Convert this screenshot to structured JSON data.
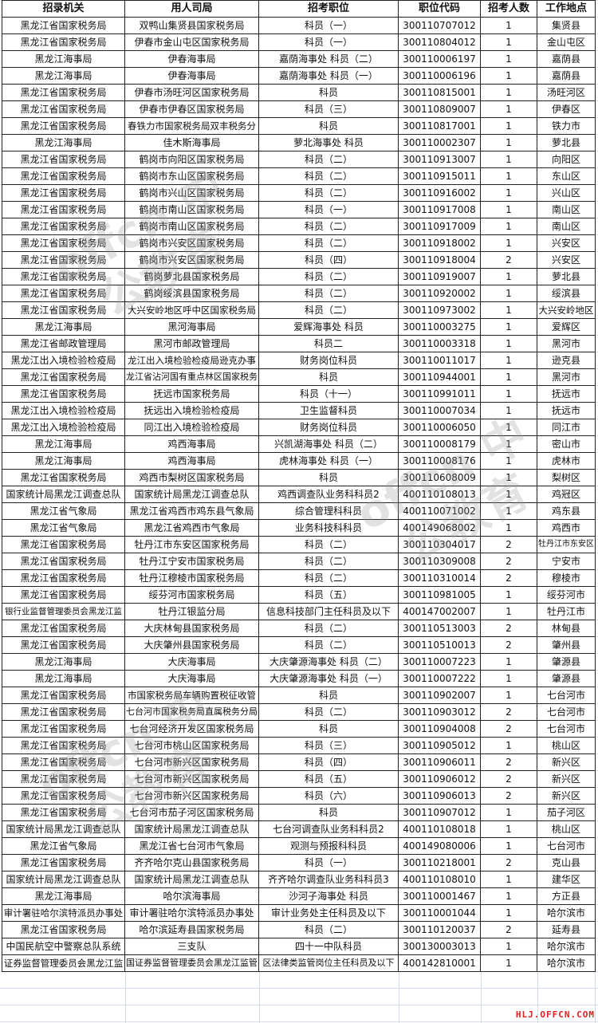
{
  "table": {
    "headers": [
      "招录机关",
      "用人司局",
      "招考职位",
      "职位代码",
      "招考人数",
      "工作地点"
    ],
    "rows": [
      [
        "黑龙江省国家税务局",
        "双鸭山集贤县国家税务局",
        "科员（一）",
        "300110707012",
        "1",
        "集贤县"
      ],
      [
        "黑龙江省国家税务局",
        "伊春市金山屯区国家税务局",
        "科员（一）",
        "300110804012",
        "1",
        "金山屯区"
      ],
      [
        "黑龙江海事局",
        "伊春海事局",
        "嘉荫海事处 科员（二）",
        "300110006197",
        "1",
        "嘉荫县"
      ],
      [
        "黑龙江海事局",
        "伊春海事局",
        "嘉荫海事处 科员（一）",
        "300110006196",
        "1",
        "嘉荫县"
      ],
      [
        "黑龙江省国家税务局",
        "伊春市汤旺河区国家税务局",
        "科员",
        "300110815001",
        "1",
        "汤旺河区"
      ],
      [
        "黑龙江省国家税务局",
        "伊春市伊春区国家税务局",
        "科员（三）",
        "300110809007",
        "1",
        "伊春区"
      ],
      [
        "黑龙江省国家税务局",
        "春铁力市国家税务局双丰税务分",
        "科员",
        "300110817001",
        "1",
        "铁力市"
      ],
      [
        "黑龙江海事局",
        "佳木斯海事局",
        "萝北海事处 科员",
        "300110002307",
        "1",
        "萝北县"
      ],
      [
        "黑龙江省国家税务局",
        "鹤岗市向阳区国家税务局",
        "科员（二）",
        "300110913007",
        "1",
        "向阳区"
      ],
      [
        "黑龙江省国家税务局",
        "鹤岗市东山区国家税务局",
        "科员（二）",
        "300110915011",
        "1",
        "东山区"
      ],
      [
        "黑龙江省国家税务局",
        "鹤岗市兴山区国家税务局",
        "科员（二）",
        "300110916002",
        "1",
        "兴山区"
      ],
      [
        "黑龙江省国家税务局",
        "鹤岗市南山区国家税务局",
        "科员（一）",
        "300110917008",
        "1",
        "南山区"
      ],
      [
        "黑龙江省国家税务局",
        "鹤岗市南山区国家税务局",
        "科员（二）",
        "300110917009",
        "1",
        "南山区"
      ],
      [
        "黑龙江省国家税务局",
        "鹤岗市兴安区国家税务局",
        "科员（二）",
        "300110918002",
        "1",
        "兴安区"
      ],
      [
        "黑龙江省国家税务局",
        "鹤岗市兴安区国家税务局",
        "科员（四）",
        "300110918004",
        "2",
        "兴安区"
      ],
      [
        "黑龙江省国家税务局",
        "鹤岗萝北县国家税务局",
        "科员（二）",
        "300110919007",
        "1",
        "萝北县"
      ],
      [
        "黑龙江省国家税务局",
        "鹤岗绥滨县国家税务局",
        "科员（二）",
        "300110920002",
        "1",
        "绥滨县"
      ],
      [
        "黑龙江省国家税务局",
        "大兴安岭地区呼中区国家税务局",
        "科员（二）",
        "300110973002",
        "1",
        "大兴安岭地区"
      ],
      [
        "黑龙江海事局",
        "黑河海事局",
        "爱辉海事处 科员",
        "300110003275",
        "1",
        "爱辉区"
      ],
      [
        "黑龙江省邮政管理局",
        "黑河市邮政管理局",
        "科员二",
        "300110003318",
        "1",
        "黑河市"
      ],
      [
        "黑龙江出入境检验检疫局",
        "龙江出入境检验检疫局逊克办事",
        "财务岗位科员",
        "300110011017",
        "1",
        "逊克县"
      ],
      [
        "黑龙江省国家税务局",
        "龙江省沾河国有重点林区国家税务",
        "科员",
        "300110944001",
        "1",
        "黑河市"
      ],
      [
        "黑龙江省国家税务局",
        "抚远市国家税务局",
        "科员（十一）",
        "300110991011",
        "1",
        "抚远市"
      ],
      [
        "黑龙江出入境检验检疫局",
        "抚远出入境检验检疫局",
        "卫生监督科员",
        "300110007034",
        "1",
        "抚远市"
      ],
      [
        "黑龙江出入境检验检疫局",
        "同江出入境检验检疫局",
        "财务岗位科员",
        "300110006050",
        "1",
        "同江市"
      ],
      [
        "黑龙江海事局",
        "鸡西海事局",
        "兴凯湖海事处 科员（二）",
        "300110008179",
        "1",
        "密山市"
      ],
      [
        "黑龙江海事局",
        "鸡西海事局",
        "虎林海事处 科员（一）",
        "300110008176",
        "1",
        "虎林市"
      ],
      [
        "黑龙江省国家税务局",
        "鸡西市梨树区国家税务局",
        "科员",
        "300110608009",
        "1",
        "梨树区"
      ],
      [
        "国家统计局黑龙江调查总队",
        "国家统计局黑龙江调查总队",
        "鸡西调查队业务科科员2",
        "400110108013",
        "1",
        "鸡冠区"
      ],
      [
        "黑龙江省气象局",
        "黑龙江省鸡西市鸡东县气象局",
        "综合管理科科员",
        "400110071002",
        "1",
        "鸡东县"
      ],
      [
        "黑龙江省气象局",
        "黑龙江省鸡西市气象局",
        "业务科技科科员",
        "400149068002",
        "1",
        "鸡西市"
      ],
      [
        "黑龙江省国家税务局",
        "牡丹江市东安区国家税务局",
        "科员（二）",
        "300110304017",
        "2",
        "牡丹江市东安区"
      ],
      [
        "黑龙江省国家税务局",
        "牡丹江宁安市国家税务局",
        "科员（二）",
        "300110309008",
        "2",
        "宁安市"
      ],
      [
        "黑龙江省国家税务局",
        "牡丹江穆棱市国家税务局",
        "科员（二）",
        "300110310014",
        "2",
        "穆棱市"
      ],
      [
        "黑龙江省国家税务局",
        "绥芬河市国家税务局",
        "科员（五）",
        "300110981005",
        "1",
        "绥芬河市"
      ],
      [
        "银行业监督管理委员会黑龙江监",
        "牡丹江银监分局",
        "信息科技部门主任科员及以下",
        "400147002007",
        "1",
        "牡丹江市"
      ],
      [
        "黑龙江省国家税务局",
        "大庆林甸县国家税务局",
        "科员（二）",
        "300110513003",
        "2",
        "林甸县"
      ],
      [
        "黑龙江省国家税务局",
        "大庆肇州县国家税务局",
        "科员（二）",
        "300110510013",
        "2",
        "肇州县"
      ],
      [
        "黑龙江海事局",
        "大庆海事局",
        "大庆肇源海事处 科员（二）",
        "300110007223",
        "1",
        "肇源县"
      ],
      [
        "黑龙江海事局",
        "大庆海事局",
        "大庆肇源海事处 科员（一）",
        "300110007222",
        "1",
        "肇源县"
      ],
      [
        "黑龙江省国家税务局",
        "市国家税务局车辆购置税征收管",
        "科员",
        "300110902007",
        "1",
        "七台河市"
      ],
      [
        "黑龙江省国家税务局",
        "七台河市国家税务局直属税务分局",
        "科员（二）",
        "300110903012",
        "2",
        "七台河市"
      ],
      [
        "黑龙江省国家税务局",
        "七台河经济开发区国家税务局",
        "科员",
        "300110904008",
        "2",
        "七台河市"
      ],
      [
        "黑龙江省国家税务局",
        "七台河市桃山区国家税务局",
        "科员（三）",
        "300110905012",
        "1",
        "桃山区"
      ],
      [
        "黑龙江省国家税务局",
        "七台河市新兴区国家税务局",
        "科员（四）",
        "300110906011",
        "2",
        "新兴区"
      ],
      [
        "黑龙江省国家税务局",
        "七台河市新兴区国家税务局",
        "科员（五）",
        "300110906012",
        "2",
        "新兴区"
      ],
      [
        "黑龙江省国家税务局",
        "七台河市新兴区国家税务局",
        "科员（六）",
        "300110906013",
        "2",
        "新兴区"
      ],
      [
        "黑龙江省国家税务局",
        "七台河市茄子河区国家税务局",
        "科员",
        "300110907012",
        "1",
        "茄子河区"
      ],
      [
        "国家统计局黑龙江调查总队",
        "国家统计局黑龙江调查总队",
        "七台河调查队业务科科员2",
        "400110108018",
        "1",
        "桃山区"
      ],
      [
        "黑龙江省气象局",
        "黑龙江省七台河市气象局",
        "观测与预报科科员",
        "400149080006",
        "1",
        "七台河市"
      ],
      [
        "黑龙江省国家税务局",
        "齐齐哈尔克山县国家税务局",
        "科员（一）",
        "300110218001",
        "2",
        "克山县"
      ],
      [
        "国家统计局黑龙江调查总队",
        "国家统计局黑龙江调查总队",
        "齐齐哈尔调查队业务科科员3",
        "400110108010",
        "1",
        "建华区"
      ],
      [
        "黑龙江海事局",
        "哈尔滨海事局",
        "沙河子海事处 科员",
        "300110001467",
        "1",
        "方正县"
      ],
      [
        "审计署驻哈尔滨特派员办事处",
        "审计署驻哈尔滨特派员办事处",
        "审计业务处主任科员及以下",
        "300110001044",
        "1",
        "哈尔滨市"
      ],
      [
        "黑龙江省国家税务局",
        "哈尔滨延寿县国家税务局",
        "科员（二）",
        "300110120037",
        "2",
        "延寿县"
      ],
      [
        "中国民航空中警察总队系统",
        "三支队",
        "四十一中队科员",
        "300130003013",
        "1",
        "哈尔滨市"
      ],
      [
        "证券监督管理委员会黑龙江监",
        "国证券监督管理委员会黑龙江监管",
        "区法律类监管岗位主任科员及以下",
        "400142810001",
        "1",
        "哈尔滨市"
      ]
    ]
  },
  "watermark": {
    "text": "offcn 中公教育"
  },
  "footer": {
    "site": "HLJ.OFFCN.COM"
  },
  "colors": {
    "grid": "#d4dcea",
    "border": "#222222",
    "site_text": "#e02020"
  }
}
